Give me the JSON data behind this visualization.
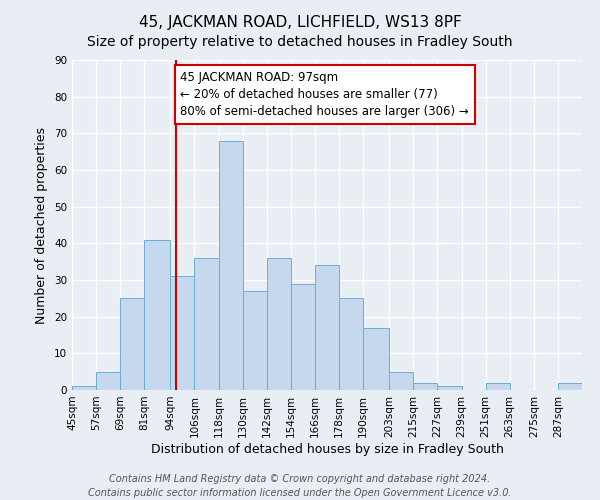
{
  "title": "45, JACKMAN ROAD, LICHFIELD, WS13 8PF",
  "subtitle": "Size of property relative to detached houses in Fradley South",
  "xlabel": "Distribution of detached houses by size in Fradley South",
  "ylabel": "Number of detached properties",
  "footer_line1": "Contains HM Land Registry data © Crown copyright and database right 2024.",
  "footer_line2": "Contains public sector information licensed under the Open Government Licence v3.0.",
  "bin_labels": [
    "45sqm",
    "57sqm",
    "69sqm",
    "81sqm",
    "94sqm",
    "106sqm",
    "118sqm",
    "130sqm",
    "142sqm",
    "154sqm",
    "166sqm",
    "178sqm",
    "190sqm",
    "203sqm",
    "215sqm",
    "227sqm",
    "239sqm",
    "251sqm",
    "263sqm",
    "275sqm",
    "287sqm"
  ],
  "bar_values": [
    1,
    5,
    25,
    41,
    31,
    36,
    68,
    27,
    36,
    29,
    34,
    25,
    17,
    5,
    2,
    1,
    0,
    2,
    0,
    0,
    2
  ],
  "bar_color": "#c5d8ee",
  "bar_edgecolor": "#6aaed6",
  "ylim": [
    0,
    90
  ],
  "yticks": [
    0,
    10,
    20,
    30,
    40,
    50,
    60,
    70,
    80,
    90
  ],
  "background_color": "#e8eef4",
  "plot_bg_color": "#e8eef4",
  "grid_color": "#ffffff",
  "vline_color": "#cc0000",
  "box_edgecolor": "#cc0000",
  "title_fontsize": 11,
  "subtitle_fontsize": 10,
  "xlabel_fontsize": 9,
  "ylabel_fontsize": 9,
  "tick_fontsize": 7.5,
  "annotation_fontsize": 8.5,
  "footer_fontsize": 7
}
